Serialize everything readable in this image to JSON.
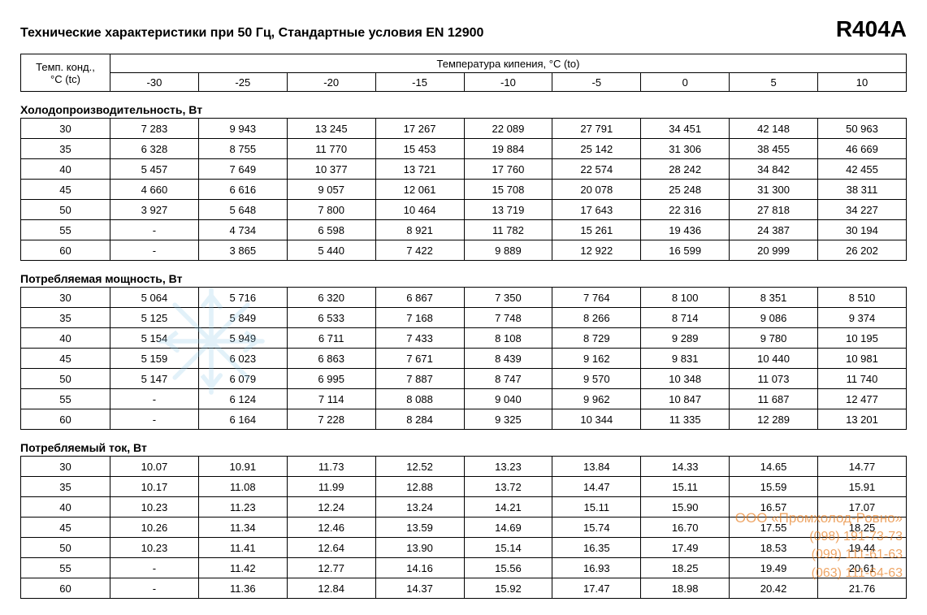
{
  "title": "Технические характеристики при 50 Гц, Стандартные условия EN 12900",
  "refrigerant": "R404A",
  "header": {
    "tc_label_line1": "Темп. конд.,",
    "tc_label_line2": "°C (tc)",
    "to_label": "Температура кипения, °C (to)",
    "to_values": [
      "-30",
      "-25",
      "-20",
      "-15",
      "-10",
      "-5",
      "0",
      "5",
      "10"
    ]
  },
  "sections": [
    {
      "title": "Холодопроизводительность, Вт",
      "rows": [
        {
          "tc": "30",
          "v": [
            "7 283",
            "9 943",
            "13 245",
            "17 267",
            "22 089",
            "27 791",
            "34 451",
            "42 148",
            "50 963"
          ]
        },
        {
          "tc": "35",
          "v": [
            "6 328",
            "8 755",
            "11 770",
            "15 453",
            "19 884",
            "25 142",
            "31 306",
            "38 455",
            "46 669"
          ]
        },
        {
          "tc": "40",
          "v": [
            "5 457",
            "7 649",
            "10 377",
            "13 721",
            "17 760",
            "22 574",
            "28 242",
            "34 842",
            "42 455"
          ]
        },
        {
          "tc": "45",
          "v": [
            "4 660",
            "6 616",
            "9 057",
            "12 061",
            "15 708",
            "20 078",
            "25 248",
            "31 300",
            "38 311"
          ]
        },
        {
          "tc": "50",
          "v": [
            "3 927",
            "5 648",
            "7 800",
            "10 464",
            "13 719",
            "17 643",
            "22 316",
            "27 818",
            "34 227"
          ]
        },
        {
          "tc": "55",
          "v": [
            "-",
            "4 734",
            "6 598",
            "8 921",
            "11 782",
            "15 261",
            "19 436",
            "24 387",
            "30 194"
          ]
        },
        {
          "tc": "60",
          "v": [
            "-",
            "3 865",
            "5 440",
            "7 422",
            "9 889",
            "12 922",
            "16 599",
            "20 999",
            "26 202"
          ]
        }
      ]
    },
    {
      "title": "Потребляемая мощность, Вт",
      "rows": [
        {
          "tc": "30",
          "v": [
            "5 064",
            "5 716",
            "6 320",
            "6 867",
            "7 350",
            "7 764",
            "8 100",
            "8 351",
            "8 510"
          ]
        },
        {
          "tc": "35",
          "v": [
            "5 125",
            "5 849",
            "6 533",
            "7 168",
            "7 748",
            "8 266",
            "8 714",
            "9 086",
            "9 374"
          ]
        },
        {
          "tc": "40",
          "v": [
            "5 154",
            "5 949",
            "6 711",
            "7 433",
            "8 108",
            "8 729",
            "9 289",
            "9 780",
            "10 195"
          ]
        },
        {
          "tc": "45",
          "v": [
            "5 159",
            "6 023",
            "6 863",
            "7 671",
            "8 439",
            "9 162",
            "9 831",
            "10 440",
            "10 981"
          ]
        },
        {
          "tc": "50",
          "v": [
            "5 147",
            "6 079",
            "6 995",
            "7 887",
            "8 747",
            "9 570",
            "10 348",
            "11 073",
            "11 740"
          ]
        },
        {
          "tc": "55",
          "v": [
            "-",
            "6 124",
            "7 114",
            "8 088",
            "9 040",
            "9 962",
            "10 847",
            "11 687",
            "12 477"
          ]
        },
        {
          "tc": "60",
          "v": [
            "-",
            "6 164",
            "7 228",
            "8 284",
            "9 325",
            "10 344",
            "11 335",
            "12 289",
            "13 201"
          ]
        }
      ]
    },
    {
      "title": "Потребляемый ток, Вт",
      "rows": [
        {
          "tc": "30",
          "v": [
            "10.07",
            "10.91",
            "11.73",
            "12.52",
            "13.23",
            "13.84",
            "14.33",
            "14.65",
            "14.77"
          ]
        },
        {
          "tc": "35",
          "v": [
            "10.17",
            "11.08",
            "11.99",
            "12.88",
            "13.72",
            "14.47",
            "15.11",
            "15.59",
            "15.91"
          ]
        },
        {
          "tc": "40",
          "v": [
            "10.23",
            "11.23",
            "12.24",
            "13.24",
            "14.21",
            "15.11",
            "15.90",
            "16.57",
            "17.07"
          ]
        },
        {
          "tc": "45",
          "v": [
            "10.26",
            "11.34",
            "12.46",
            "13.59",
            "14.69",
            "15.74",
            "16.70",
            "17.55",
            "18.25"
          ]
        },
        {
          "tc": "50",
          "v": [
            "10.23",
            "11.41",
            "12.64",
            "13.90",
            "15.14",
            "16.35",
            "17.49",
            "18.53",
            "19.44"
          ]
        },
        {
          "tc": "55",
          "v": [
            "-",
            "11.42",
            "12.77",
            "14.16",
            "15.56",
            "16.93",
            "18.25",
            "19.49",
            "20.61"
          ]
        },
        {
          "tc": "60",
          "v": [
            "-",
            "11.36",
            "12.84",
            "14.37",
            "15.92",
            "17.47",
            "18.98",
            "20.42",
            "21.76"
          ]
        }
      ]
    }
  ],
  "watermark": {
    "company": "ООО «Промхолод-Ровно»",
    "phones": [
      "(098) 191-73-73",
      "(099) 111-61-63",
      "(063) 111-64-63"
    ]
  },
  "style": {
    "background": "#ffffff",
    "border_color": "#000000",
    "font_size_body": 13,
    "font_size_title": 16,
    "font_size_refrigerant": 28,
    "watermark_color": "#e67817",
    "snowflake_color": "#8fc9e8"
  }
}
